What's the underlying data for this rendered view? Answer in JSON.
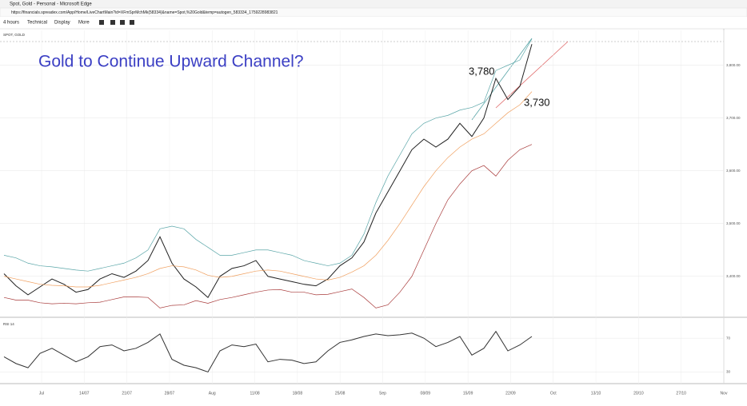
{
  "browser": {
    "title": "Spot, Gold - Personal - Microsoft Edge",
    "url": "https://financials.spreadex.com/App/Home/LiveChartMain?id=XFmSprMchMk(58334)&name=Spot,%20Gold&temp=autogen_583334_1759228983821"
  },
  "toolbar": [
    "4 hours",
    "Technical",
    "Display",
    "More"
  ],
  "time_axis": {
    "labels": [
      "Jul",
      "14/07",
      "21/07",
      "28/07",
      "Aug",
      "11/08",
      "18/08",
      "25/08",
      "Sep",
      "08/09",
      "15/09",
      "22/09",
      "Oct",
      "13/10",
      "20/10",
      "27/10",
      "Nov"
    ]
  },
  "chart_data": [
    {
      "type": "line",
      "label": "SPOT, GOLD",
      "title": "Gold to Continue Upward Channel?",
      "annotations": [
        "3,780",
        "3,730"
      ],
      "ylim": [
        3330,
        3860
      ],
      "yticks": [
        {
          "value": 3400,
          "label": "3,400.00"
        },
        {
          "value": 3500,
          "label": "3,500.00"
        },
        {
          "value": 3600,
          "label": "3,600.00"
        },
        {
          "value": 3700,
          "label": "3,700.00"
        },
        {
          "value": 3800,
          "label": "3,800.00"
        }
      ],
      "series": [
        {
          "color": "#222222",
          "values": [
            3405,
            3382,
            3365,
            3380,
            3395,
            3385,
            3370,
            3375,
            3395,
            3405,
            3398,
            3410,
            3430,
            3475,
            3425,
            3395,
            3380,
            3360,
            3400,
            3415,
            3420,
            3430,
            3400,
            3395,
            3390,
            3385,
            3382,
            3395,
            3420,
            3435,
            3465,
            3520,
            3560,
            3600,
            3640,
            3660,
            3645,
            3660,
            3690,
            3665,
            3700,
            3775,
            3735,
            3760,
            3840
          ]
        },
        {
          "color": "#5aa6a8",
          "values": [
            3440,
            3435,
            3425,
            3420,
            3418,
            3415,
            3412,
            3410,
            3415,
            3420,
            3425,
            3435,
            3450,
            3490,
            3495,
            3490,
            3470,
            3455,
            3440,
            3440,
            3445,
            3450,
            3450,
            3445,
            3440,
            3430,
            3425,
            3420,
            3425,
            3440,
            3480,
            3540,
            3590,
            3630,
            3670,
            3690,
            3700,
            3705,
            3715,
            3720,
            3730,
            3790,
            3800,
            3810,
            3850
          ]
        },
        {
          "color": "#f0a060",
          "values": [
            3400,
            3395,
            3390,
            3385,
            3383,
            3382,
            3380,
            3380,
            3383,
            3388,
            3393,
            3398,
            3405,
            3415,
            3420,
            3418,
            3412,
            3402,
            3398,
            3400,
            3405,
            3410,
            3412,
            3410,
            3405,
            3400,
            3395,
            3393,
            3398,
            3408,
            3420,
            3440,
            3468,
            3500,
            3535,
            3570,
            3600,
            3625,
            3645,
            3660,
            3670,
            3690,
            3710,
            3725,
            3750
          ]
        },
        {
          "color": "#a83a3a",
          "values": [
            3360,
            3355,
            3355,
            3350,
            3348,
            3349,
            3348,
            3350,
            3351,
            3356,
            3361,
            3361,
            3360,
            3340,
            3345,
            3346,
            3354,
            3349,
            3356,
            3360,
            3365,
            3370,
            3374,
            3375,
            3370,
            3370,
            3365,
            3366,
            3371,
            3376,
            3360,
            3340,
            3346,
            3370,
            3400,
            3450,
            3500,
            3545,
            3575,
            3600,
            3610,
            3590,
            3620,
            3640,
            3650
          ]
        }
      ]
    },
    {
      "type": "line",
      "label": "RSI 14",
      "ylim": [
        20,
        90
      ],
      "yticks": [
        30,
        70
      ],
      "series": [
        {
          "color": "#333333",
          "values": [
            48,
            40,
            35,
            52,
            58,
            50,
            42,
            48,
            60,
            62,
            55,
            58,
            65,
            75,
            45,
            38,
            35,
            30,
            55,
            62,
            60,
            63,
            42,
            45,
            44,
            40,
            42,
            55,
            65,
            68,
            72,
            75,
            73,
            74,
            76,
            70,
            60,
            65,
            72,
            50,
            58,
            78,
            55,
            62,
            72
          ]
        }
      ]
    }
  ]
}
